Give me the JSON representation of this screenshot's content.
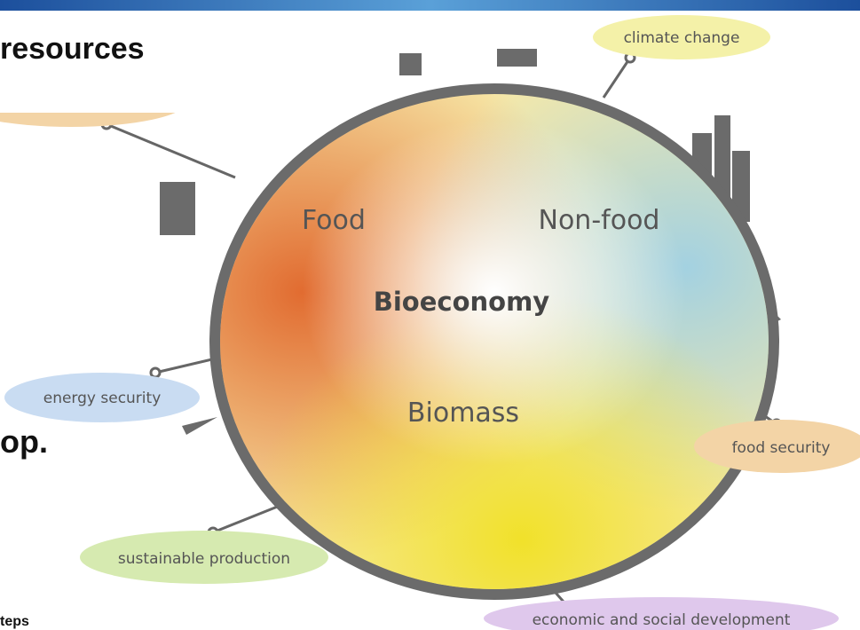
{
  "slide": {
    "fragments": [
      "resources",
      "op.",
      "teps"
    ]
  },
  "diagram": {
    "center": "Bioeconomy",
    "sectors": [
      "Food",
      "Non-food",
      "Biomass"
    ],
    "labels": [
      "climate change",
      "energy security",
      "food security",
      "sustainable production",
      "economic and social development"
    ]
  }
}
